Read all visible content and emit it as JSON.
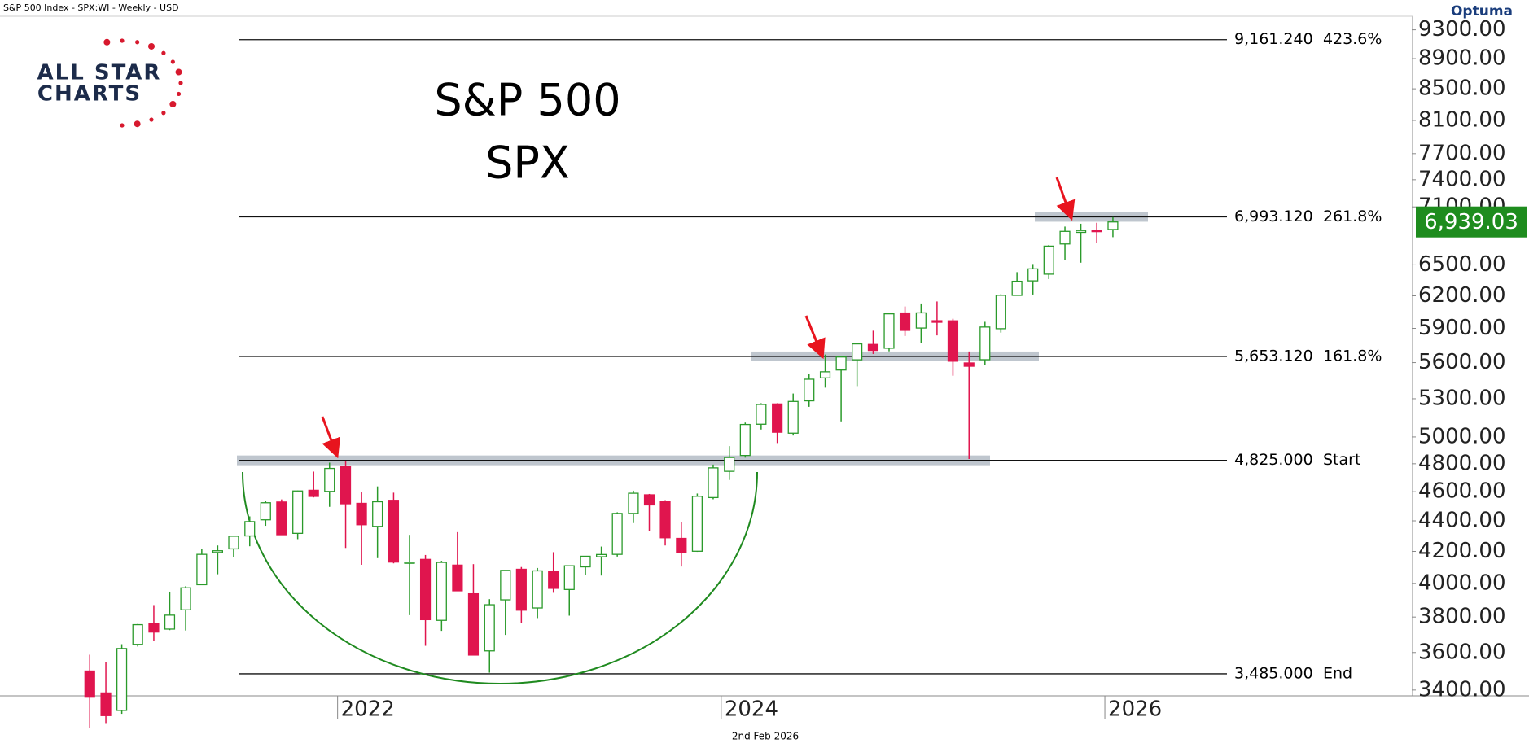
{
  "header": "S&P 500 Index - SPX:WI - Weekly - USD",
  "brand": "Optuma",
  "logo": {
    "line1": "ALL STAR",
    "line2": "CHARTS"
  },
  "footer": "2nd Feb 2026",
  "chart_data": {
    "type": "candlestick",
    "title": "S&P 500",
    "subtitle": "SPX",
    "x": [
      2020.708,
      2020.792,
      2020.875,
      2020.958,
      2021.042,
      2021.125,
      2021.208,
      2021.292,
      2021.375,
      2021.458,
      2021.542,
      2021.625,
      2021.708,
      2021.792,
      2021.875,
      2021.958,
      2022.042,
      2022.125,
      2022.208,
      2022.292,
      2022.375,
      2022.458,
      2022.542,
      2022.625,
      2022.708,
      2022.792,
      2022.875,
      2022.958,
      2023.042,
      2023.125,
      2023.208,
      2023.292,
      2023.375,
      2023.458,
      2023.542,
      2023.625,
      2023.708,
      2023.792,
      2023.875,
      2023.958,
      2024.042,
      2024.125,
      2024.208,
      2024.292,
      2024.375,
      2024.458,
      2024.542,
      2024.625,
      2024.708,
      2024.792,
      2024.875,
      2024.958,
      2025.042,
      2025.125,
      2025.208,
      2025.292,
      2025.375,
      2025.458,
      2025.542,
      2025.625,
      2025.708,
      2025.792,
      2025.875,
      2025.958,
      2026.042
    ],
    "open": [
      3500,
      3385,
      3296,
      3645,
      3764,
      3731,
      3842,
      3992,
      4193,
      4216,
      4300,
      4407,
      4528,
      4317,
      4610,
      4602,
      4778,
      4519,
      4363,
      4540,
      4130,
      4149,
      3781,
      4113,
      3937,
      3609,
      3901,
      4087,
      3853,
      4071,
      3963,
      4102,
      4166,
      4181,
      4450,
      4578,
      4530,
      4284,
      4201,
      4559,
      4745,
      4861,
      5098,
      5258,
      5029,
      5283,
      5471,
      5537,
      5624,
      5757,
      5724,
      6040,
      5903,
      5969,
      5968,
      5597,
      5625,
      5897,
      6204,
      6343,
      6408,
      6710,
      6830,
      6850,
      6860
    ],
    "high": [
      3588,
      3549,
      3646,
      3760,
      3870,
      3950,
      3983,
      4218,
      4238,
      4302,
      4430,
      4537,
      4546,
      4608,
      4743,
      4808,
      4819,
      4595,
      4637,
      4593,
      4307,
      4177,
      4140,
      4325,
      4119,
      3905,
      4080,
      4101,
      4095,
      4195,
      4110,
      4170,
      4231,
      4458,
      4607,
      4584,
      4541,
      4393,
      4587,
      4794,
      4931,
      5111,
      5264,
      5264,
      5342,
      5505,
      5669,
      5651,
      5768,
      5879,
      6044,
      6100,
      6128,
      6147,
      5987,
      5696,
      5959,
      6215,
      6428,
      6508,
      6700,
      6890,
      6920,
      6930,
      6990
    ],
    "low": [
      3209,
      3233,
      3279,
      3633,
      3663,
      3725,
      3723,
      3992,
      4056,
      4165,
      4233,
      4367,
      4306,
      4279,
      4560,
      4495,
      4222,
      4115,
      4157,
      4124,
      3811,
      3637,
      3721,
      3955,
      3585,
      3491,
      3698,
      3764,
      3794,
      3943,
      3808,
      4049,
      4048,
      4167,
      4385,
      4335,
      4238,
      4104,
      4197,
      4547,
      4683,
      4845,
      5057,
      4954,
      5011,
      5235,
      5390,
      5120,
      5403,
      5674,
      5697,
      5832,
      5773,
      5837,
      5489,
      4835,
      5579,
      5862,
      6201,
      6212,
      6360,
      6550,
      6521,
      6720,
      6780
    ],
    "close": [
      3363,
      3270,
      3622,
      3756,
      3714,
      3811,
      3973,
      4181,
      4204,
      4298,
      4395,
      4523,
      4308,
      4605,
      4567,
      4766,
      4516,
      4374,
      4530,
      4132,
      4132,
      3785,
      4130,
      3955,
      3586,
      3872,
      4080,
      3840,
      4077,
      3970,
      4109,
      4169,
      4180,
      4450,
      4589,
      4508,
      4288,
      4194,
      4568,
      4770,
      4846,
      5096,
      5254,
      5036,
      5278,
      5460,
      5522,
      5648,
      5762,
      5705,
      6032,
      5882,
      6041,
      5955,
      5612,
      5569,
      5912,
      6205,
      6339,
      6460,
      6688,
      6840,
      6849,
      6845,
      6939
    ],
    "colors": {
      "up": "#2a9a2a",
      "down": "#e0154e"
    },
    "xlim": [
      2020.24,
      2027.6
    ],
    "xticks": [
      2022,
      2024,
      2026
    ],
    "ylim": [
      3370,
      9470
    ],
    "log_scale": true,
    "yticks": [
      {
        "value": 3400,
        "label": "3400.00"
      },
      {
        "value": 3600,
        "label": "3600.00"
      },
      {
        "value": 3800,
        "label": "3800.00"
      },
      {
        "value": 4000,
        "label": "4000.00"
      },
      {
        "value": 4200,
        "label": "4200.00"
      },
      {
        "value": 4400,
        "label": "4400.00"
      },
      {
        "value": 4600,
        "label": "4600.00"
      },
      {
        "value": 4800,
        "label": "4800.00"
      },
      {
        "value": 5000,
        "label": "5000.00"
      },
      {
        "value": 5300,
        "label": "5300.00"
      },
      {
        "value": 5600,
        "label": "5600.00"
      },
      {
        "value": 5900,
        "label": "5900.00"
      },
      {
        "value": 6200,
        "label": "6200.00"
      },
      {
        "value": 6500,
        "label": "6500.00"
      },
      {
        "value": 7100,
        "label": "7100.00"
      },
      {
        "value": 7400,
        "label": "7400.00"
      },
      {
        "value": 7700,
        "label": "7700.00"
      },
      {
        "value": 8100,
        "label": "8100.00"
      },
      {
        "value": 8500,
        "label": "8500.00"
      },
      {
        "value": 8900,
        "label": "8900.00"
      },
      {
        "value": 9300,
        "label": "9300.00"
      }
    ],
    "levels": [
      {
        "value": 9161.24,
        "label": "9,161.240",
        "tag": "423.6%"
      },
      {
        "value": 6993.12,
        "label": "6,993.120",
        "tag": "261.8%"
      },
      {
        "value": 5653.12,
        "label": "5,653.120",
        "tag": "161.8%"
      },
      {
        "value": 4825,
        "label": "4,825.000",
        "tag": "Start"
      },
      {
        "value": 3485,
        "label": "3,485.000",
        "tag": "End"
      }
    ],
    "last_price": {
      "value": 6939.03,
      "label": "6,939.03",
      "color": "#1e8c1e"
    }
  }
}
